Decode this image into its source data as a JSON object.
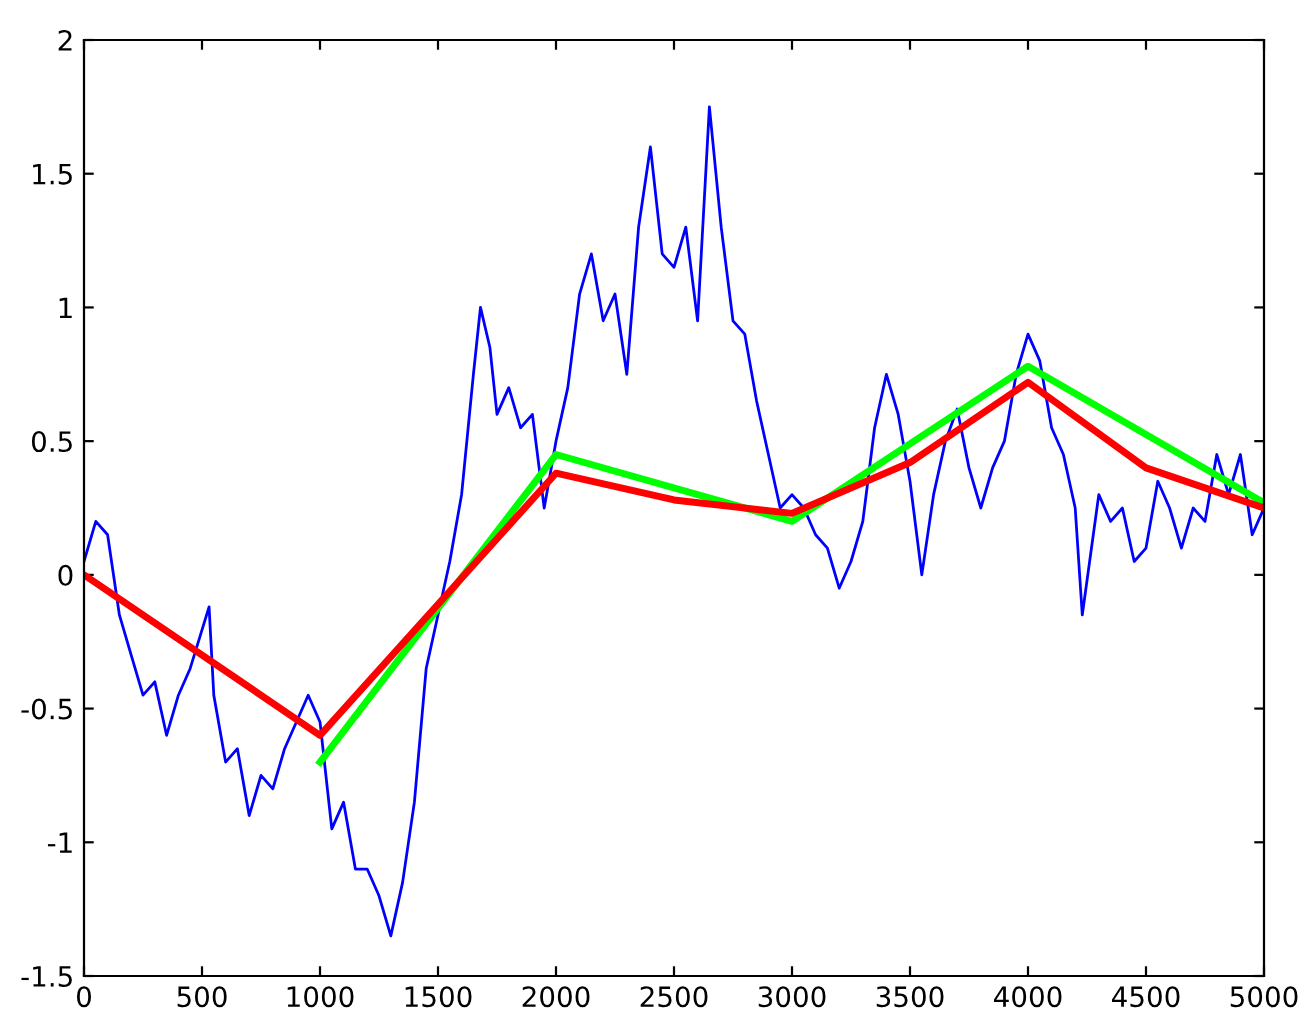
{
  "chart_data": {
    "type": "line",
    "xlim": [
      0,
      5000
    ],
    "ylim": [
      -1.5,
      2
    ],
    "xticks": [
      0,
      500,
      1000,
      1500,
      2000,
      2500,
      3000,
      3500,
      4000,
      4500,
      5000
    ],
    "yticks": [
      -1.5,
      -1,
      -0.5,
      0,
      0.5,
      1,
      1.5,
      2
    ],
    "grid": false,
    "series": [
      {
        "color": "#0000ff",
        "x": [
          0,
          50,
          100,
          150,
          200,
          250,
          300,
          350,
          400,
          450,
          530,
          550,
          600,
          650,
          700,
          750,
          800,
          850,
          900,
          950,
          1000,
          1050,
          1100,
          1150,
          1200,
          1250,
          1300,
          1350,
          1400,
          1450,
          1500,
          1550,
          1600,
          1650,
          1680,
          1720,
          1750,
          1800,
          1850,
          1900,
          1950,
          2000,
          2050,
          2100,
          2150,
          2200,
          2250,
          2300,
          2350,
          2400,
          2450,
          2500,
          2550,
          2600,
          2650,
          2700,
          2750,
          2800,
          2850,
          2900,
          2950,
          3000,
          3050,
          3100,
          3150,
          3200,
          3250,
          3300,
          3350,
          3400,
          3450,
          3500,
          3550,
          3600,
          3650,
          3700,
          3750,
          3800,
          3850,
          3900,
          3950,
          4000,
          4050,
          4100,
          4150,
          4200,
          4230,
          4300,
          4350,
          4400,
          4450,
          4500,
          4550,
          4600,
          4650,
          4700,
          4750,
          4800,
          4850,
          4900,
          4950,
          5000
        ],
        "values": [
          0.05,
          0.2,
          0.15,
          -0.15,
          -0.3,
          -0.45,
          -0.4,
          -0.6,
          -0.45,
          -0.35,
          -0.12,
          -0.45,
          -0.7,
          -0.65,
          -0.9,
          -0.75,
          -0.8,
          -0.65,
          -0.55,
          -0.45,
          -0.55,
          -0.95,
          -0.85,
          -1.1,
          -1.1,
          -1.2,
          -1.35,
          -1.15,
          -0.85,
          -0.35,
          -0.15,
          0.05,
          0.3,
          0.75,
          1.0,
          0.85,
          0.6,
          0.7,
          0.55,
          0.6,
          0.25,
          0.5,
          0.7,
          1.05,
          1.2,
          0.95,
          1.05,
          0.75,
          1.3,
          1.6,
          1.2,
          1.15,
          1.3,
          0.95,
          1.75,
          1.3,
          0.95,
          0.9,
          0.65,
          0.45,
          0.25,
          0.3,
          0.25,
          0.15,
          0.1,
          -0.05,
          0.05,
          0.2,
          0.55,
          0.75,
          0.6,
          0.35,
          0.0,
          0.3,
          0.5,
          0.62,
          0.4,
          0.25,
          0.4,
          0.5,
          0.75,
          0.9,
          0.8,
          0.55,
          0.45,
          0.25,
          -0.15,
          0.3,
          0.2,
          0.25,
          0.05,
          0.1,
          0.35,
          0.25,
          0.1,
          0.25,
          0.2,
          0.45,
          0.3,
          0.45,
          0.15,
          0.25
        ]
      },
      {
        "color": "#00ff00",
        "x": [
          1000,
          2000,
          3000,
          4000,
          5000
        ],
        "values": [
          -0.7,
          0.45,
          0.2,
          0.78,
          0.27
        ]
      },
      {
        "color": "#ff0000",
        "x": [
          0,
          1000,
          2000,
          2500,
          3000,
          3500,
          4000,
          4500,
          5000
        ],
        "values": [
          0,
          -0.6,
          0.38,
          0.28,
          0.23,
          0.42,
          0.72,
          0.4,
          0.25
        ]
      }
    ]
  }
}
